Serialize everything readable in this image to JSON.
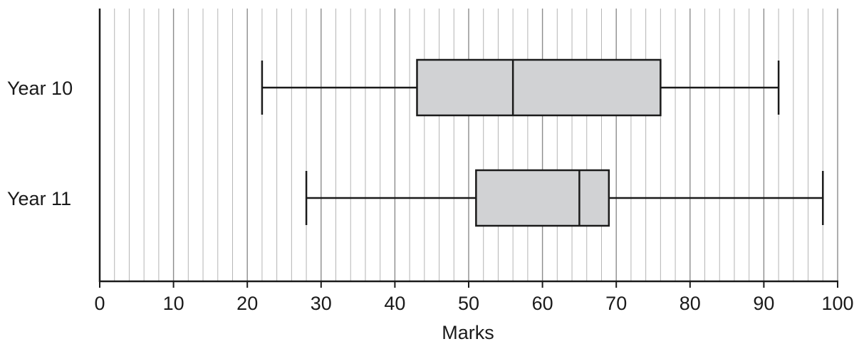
{
  "chart_data": {
    "type": "boxplot",
    "xlabel": "Marks",
    "xlim": [
      0,
      100
    ],
    "major_ticks": [
      0,
      10,
      20,
      30,
      40,
      50,
      60,
      70,
      80,
      90,
      100
    ],
    "minor_tick_step": 2,
    "grid": true,
    "categories": [
      "Year 10",
      "Year 11"
    ],
    "series": [
      {
        "name": "Year 10",
        "min": 22,
        "q1": 43,
        "median": 56,
        "q3": 76,
        "max": 92
      },
      {
        "name": "Year 11",
        "min": 28,
        "q1": 51,
        "median": 65,
        "q3": 69,
        "max": 98
      }
    ],
    "box_fill": "#d1d2d4",
    "line_color": "#1a1a1a",
    "grid_major_color": "#8c8c8c",
    "grid_minor_color": "#b4b4b4"
  }
}
